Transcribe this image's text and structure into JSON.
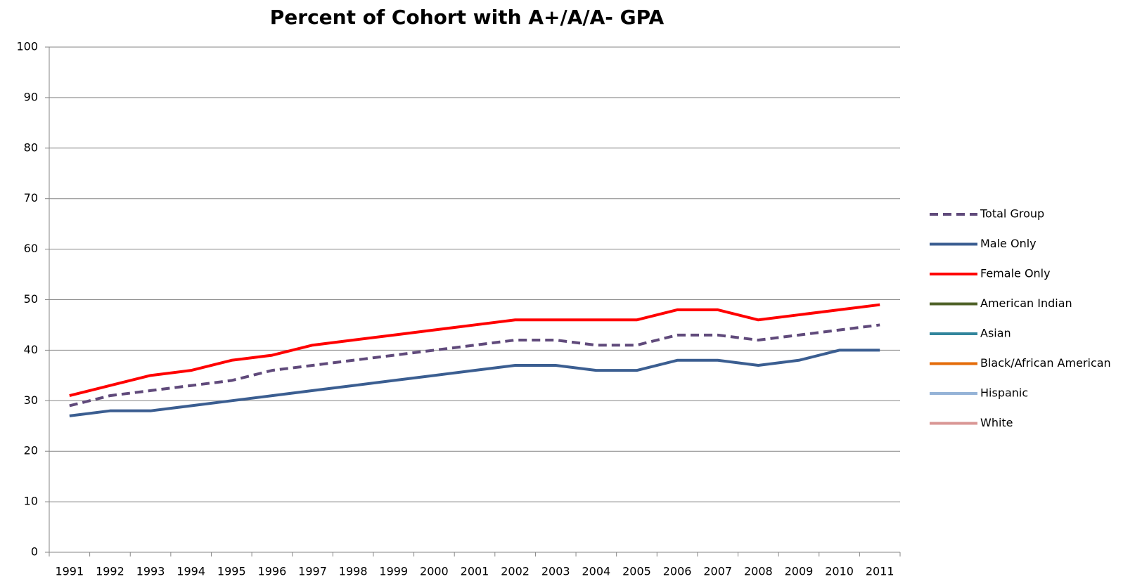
{
  "chart_data": {
    "type": "line",
    "title": "Percent of Cohort with A+/A/A- GPA",
    "categories": [
      "1991",
      "1992",
      "1993",
      "1994",
      "1995",
      "1996",
      "1997",
      "1998",
      "1999",
      "2000",
      "2001",
      "2002",
      "2003",
      "2004",
      "2005",
      "2006",
      "2007",
      "2008",
      "2009",
      "2010",
      "2011"
    ],
    "series": [
      {
        "name": "Total Group",
        "color": "#604a7b",
        "style": "dashed",
        "values": [
          29,
          31,
          32,
          33,
          34,
          36,
          37,
          38,
          39,
          40,
          41,
          42,
          42,
          41,
          41,
          43,
          43,
          42,
          43,
          44,
          45
        ]
      },
      {
        "name": "Male Only",
        "color": "#3b5e91",
        "style": "solid",
        "values": [
          27,
          28,
          28,
          29,
          30,
          31,
          32,
          33,
          34,
          35,
          36,
          37,
          37,
          36,
          36,
          38,
          38,
          37,
          38,
          40,
          40
        ]
      },
      {
        "name": "Female Only",
        "color": "#ff0000",
        "style": "solid",
        "values": [
          31,
          33,
          35,
          36,
          38,
          39,
          41,
          42,
          43,
          44,
          45,
          46,
          46,
          46,
          46,
          48,
          48,
          46,
          47,
          48,
          49
        ]
      },
      {
        "name": "American Indian",
        "color": "#4f6228",
        "style": "solid",
        "values": [
          null,
          null,
          null,
          null,
          null,
          null,
          null,
          null,
          null,
          null,
          null,
          null,
          null,
          null,
          null,
          null,
          null,
          null,
          null,
          null,
          null
        ]
      },
      {
        "name": "Asian",
        "color": "#31859c",
        "style": "solid",
        "values": [
          null,
          null,
          null,
          null,
          null,
          null,
          null,
          null,
          null,
          null,
          null,
          null,
          null,
          null,
          null,
          null,
          null,
          null,
          null,
          null,
          null
        ]
      },
      {
        "name": "Black/African American",
        "color": "#e46c0a",
        "style": "solid",
        "values": [
          null,
          null,
          null,
          null,
          null,
          null,
          null,
          null,
          null,
          null,
          null,
          null,
          null,
          null,
          null,
          null,
          null,
          null,
          null,
          null,
          null
        ]
      },
      {
        "name": "Hispanic",
        "color": "#95b3d7",
        "style": "solid",
        "values": [
          null,
          null,
          null,
          null,
          null,
          null,
          null,
          null,
          null,
          null,
          null,
          null,
          null,
          null,
          null,
          null,
          null,
          null,
          null,
          null,
          null
        ]
      },
      {
        "name": "White",
        "color": "#d99694",
        "style": "solid",
        "values": [
          null,
          null,
          null,
          null,
          null,
          null,
          null,
          null,
          null,
          null,
          null,
          null,
          null,
          null,
          null,
          null,
          null,
          null,
          null,
          null,
          null
        ]
      }
    ],
    "ylim": [
      0,
      100
    ],
    "yticks": [
      0,
      10,
      20,
      30,
      40,
      50,
      60,
      70,
      80,
      90,
      100
    ],
    "grid": true,
    "legend": "right"
  }
}
